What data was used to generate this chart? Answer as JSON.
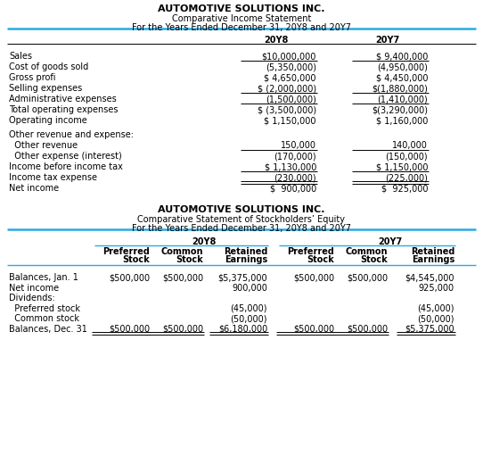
{
  "title1": "AUTOMOTIVE SOLUTIONS INC.",
  "subtitle1a": "Comparative Income Statement",
  "subtitle1b": "For the Years Ended December 31, 20Y8 and 20Y7",
  "title2": "AUTOMOTIVE SOLUTIONS INC.",
  "subtitle2a": "Comparative Statement of Stockholders’ Equity",
  "subtitle2b": "For the Years Ended December 31, 20Y8 and 20Y7",
  "col_headers": [
    "20Y8",
    "20Y7"
  ],
  "income_rows": [
    [
      "Sales",
      "$10,000,000",
      "$ 9,400,000"
    ],
    [
      "Cost of goods sold",
      "(5,350,000)",
      "(4,950,000)"
    ],
    [
      "Gross profi",
      "$ 4,650,000",
      "$ 4,450,000"
    ],
    [
      "Selling expenses",
      "$ (2,000,000)",
      "$(1,880,000)"
    ],
    [
      "Administrative expenses",
      "(1,500,000)",
      "(1,410,000)"
    ],
    [
      "Total operating expenses",
      "$ (3,500,000)",
      "$(3,290,000)"
    ],
    [
      "Operating income",
      "$ 1,150,000",
      "$ 1,160,000"
    ],
    [
      "Other revenue and expense:",
      "",
      ""
    ],
    [
      "  Other revenue",
      "150,000",
      "140,000"
    ],
    [
      "  Other expense (interest)",
      "(170,000)",
      "(150,000)"
    ],
    [
      "Income before income tax",
      "$ 1,130,000",
      "$ 1,150,000"
    ],
    [
      "Income tax expense",
      "(230,000)",
      "(225,000)"
    ],
    [
      "Net income",
      "$  900,000",
      "$  925,000"
    ]
  ],
  "underline_after_income": [
    1,
    4,
    5,
    9,
    11
  ],
  "double_underline_after_income": [
    12
  ],
  "bold_after_income": [
    2,
    6
  ],
  "equity_col_headers_sub": [
    "Preferred\nStock",
    "Common\nStock",
    "Retained\nEarnings",
    "Preferred\nStock",
    "Common\nStock",
    "Retained\nEarnings"
  ],
  "equity_rows": [
    [
      "Balances, Jan. 1",
      "$500,000",
      "$500,000",
      "$5,375,000",
      "$500,000",
      "$500,000",
      "$4,545,000"
    ],
    [
      "Net income",
      "",
      "",
      "900,000",
      "",
      "",
      "925,000"
    ],
    [
      "Dividends:",
      "",
      "",
      "",
      "",
      "",
      ""
    ],
    [
      "  Preferred stock",
      "",
      "",
      "(45,000)",
      "",
      "",
      "(45,000)"
    ],
    [
      "  Common stock",
      "",
      "",
      "(50,000)",
      "",
      "",
      "(50,000)"
    ],
    [
      "Balances, Dec. 31",
      "$500,000",
      "$500,000",
      "$6,180,000",
      "$500,000",
      "$500,000",
      "$5,375,000"
    ]
  ],
  "cyan_line_color": "#29ABE2",
  "bg_color": "#FFFFFF",
  "text_color": "#000000"
}
